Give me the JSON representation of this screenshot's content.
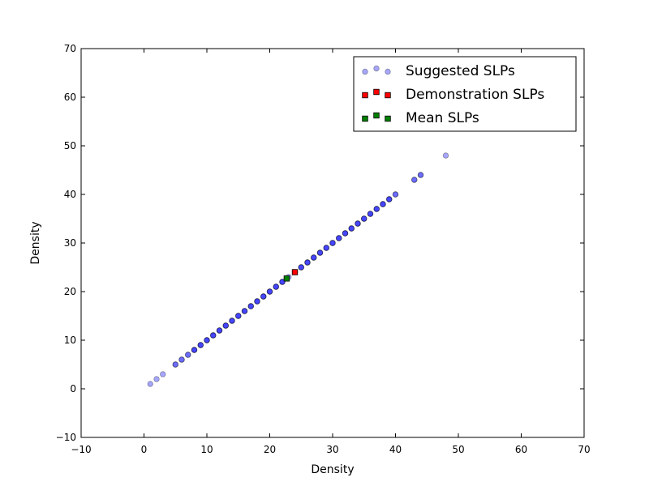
{
  "chart_data": {
    "type": "scatter",
    "title": "",
    "xlabel": "Density",
    "ylabel": "Density",
    "xlim": [
      -10,
      70
    ],
    "ylim": [
      -10,
      70
    ],
    "xticks": [
      -10,
      0,
      10,
      20,
      30,
      40,
      50,
      60,
      70
    ],
    "yticks": [
      -10,
      0,
      10,
      20,
      30,
      40,
      50,
      60,
      70
    ],
    "xtick_labels": [
      "−10",
      "0",
      "10",
      "20",
      "30",
      "40",
      "50",
      "60",
      "70"
    ],
    "ytick_labels": [
      "−10",
      "0",
      "10",
      "20",
      "30",
      "40",
      "50",
      "60",
      "70"
    ],
    "grid": false,
    "legend_position": "top-right",
    "series": [
      {
        "name": "Suggested SLPs",
        "marker": "circle",
        "color": "#0000ff",
        "opacity": 0.35,
        "points": [
          [
            1,
            1
          ],
          [
            2,
            2
          ],
          [
            3,
            3
          ],
          [
            5,
            5
          ],
          [
            6,
            6
          ],
          [
            7,
            7
          ],
          [
            8,
            8
          ],
          [
            9,
            9
          ],
          [
            10,
            10
          ],
          [
            11,
            11
          ],
          [
            12,
            12
          ],
          [
            13,
            13
          ],
          [
            14,
            14
          ],
          [
            15,
            15
          ],
          [
            16,
            16
          ],
          [
            17,
            17
          ],
          [
            18,
            18
          ],
          [
            19,
            19
          ],
          [
            20,
            20
          ],
          [
            21,
            21
          ],
          [
            22,
            22
          ],
          [
            23,
            23
          ],
          [
            24,
            24
          ],
          [
            25,
            25
          ],
          [
            26,
            26
          ],
          [
            27,
            27
          ],
          [
            28,
            28
          ],
          [
            29,
            29
          ],
          [
            30,
            30
          ],
          [
            31,
            31
          ],
          [
            32,
            32
          ],
          [
            33,
            33
          ],
          [
            34,
            34
          ],
          [
            35,
            35
          ],
          [
            36,
            36
          ],
          [
            37,
            37
          ],
          [
            38,
            38
          ],
          [
            39,
            39
          ],
          [
            40,
            40
          ],
          [
            43,
            43
          ],
          [
            44,
            44
          ],
          [
            48,
            48
          ],
          [
            5,
            5
          ],
          [
            6,
            6
          ],
          [
            7,
            7
          ],
          [
            8,
            8
          ],
          [
            9,
            9
          ],
          [
            10,
            10
          ],
          [
            11,
            11
          ],
          [
            12,
            12
          ],
          [
            13,
            13
          ],
          [
            14,
            14
          ],
          [
            15,
            15
          ],
          [
            16,
            16
          ],
          [
            17,
            17
          ],
          [
            18,
            18
          ],
          [
            19,
            19
          ],
          [
            20,
            20
          ],
          [
            21,
            21
          ],
          [
            22,
            22
          ],
          [
            25,
            25
          ],
          [
            26,
            26
          ],
          [
            27,
            27
          ],
          [
            28,
            28
          ],
          [
            29,
            29
          ],
          [
            30,
            30
          ],
          [
            31,
            31
          ],
          [
            32,
            32
          ],
          [
            33,
            33
          ],
          [
            34,
            34
          ],
          [
            35,
            35
          ],
          [
            36,
            36
          ],
          [
            37,
            37
          ],
          [
            38,
            38
          ],
          [
            39,
            39
          ],
          [
            40,
            40
          ],
          [
            43,
            43
          ],
          [
            44,
            44
          ],
          [
            8,
            8
          ],
          [
            9,
            9
          ],
          [
            10,
            10
          ],
          [
            11,
            11
          ],
          [
            12,
            12
          ],
          [
            13,
            13
          ],
          [
            14,
            14
          ],
          [
            15,
            15
          ],
          [
            16,
            16
          ],
          [
            17,
            17
          ],
          [
            18,
            18
          ],
          [
            19,
            19
          ],
          [
            20,
            20
          ],
          [
            21,
            21
          ],
          [
            22,
            22
          ],
          [
            25,
            25
          ],
          [
            26,
            26
          ],
          [
            27,
            27
          ],
          [
            28,
            28
          ],
          [
            29,
            29
          ],
          [
            30,
            30
          ],
          [
            31,
            31
          ],
          [
            32,
            32
          ],
          [
            33,
            33
          ],
          [
            34,
            34
          ],
          [
            35,
            35
          ],
          [
            36,
            36
          ],
          [
            37,
            37
          ],
          [
            38,
            38
          ],
          [
            39,
            39
          ]
        ]
      },
      {
        "name": "Demonstration SLPs",
        "marker": "square",
        "color": "#ff0000",
        "opacity": 1,
        "points": [
          [
            24,
            24
          ]
        ]
      },
      {
        "name": "Mean SLPs",
        "marker": "square",
        "color": "#008000",
        "opacity": 1,
        "points": [
          [
            22.7,
            22.7
          ]
        ]
      }
    ]
  }
}
